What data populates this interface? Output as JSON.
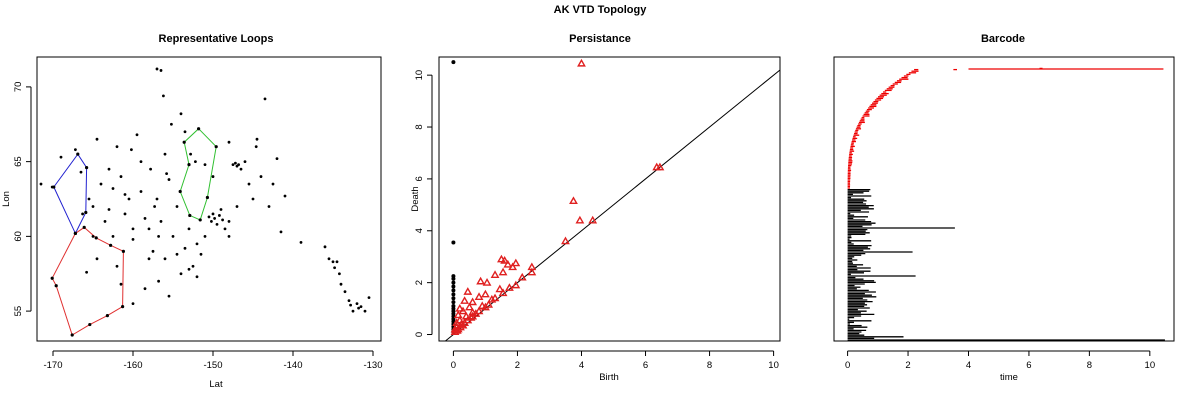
{
  "figure": {
    "title": "AK VTD Topology"
  },
  "chart_data": [
    {
      "type": "scatter",
      "title": "Representative Loops",
      "xlabel": "Lat",
      "ylabel": "Lon",
      "xlim": [
        -172,
        -129
      ],
      "ylim": [
        53,
        72
      ],
      "xticks": [
        -170,
        -160,
        -150,
        -140,
        -130
      ],
      "yticks": [
        55,
        60,
        65,
        70
      ],
      "xtick_labels": [
        "-170",
        "-160",
        "-150",
        "-140",
        "-130"
      ],
      "ytick_labels": [
        "55",
        "60",
        "65",
        "70"
      ],
      "colors": {
        "points": "#000000",
        "loop_blue": "#2020d0",
        "loop_red": "#e03030",
        "loop_green": "#30c030"
      },
      "loops": [
        {
          "color": "#2020d0",
          "points": [
            [
              -166.9,
              65.5
            ],
            [
              -165.8,
              64.6
            ],
            [
              -165.9,
              61.6
            ],
            [
              -167.2,
              60.2
            ],
            [
              -169.9,
              63.3
            ]
          ]
        },
        {
          "color": "#e03030",
          "points": [
            [
              -166.1,
              60.6
            ],
            [
              -164.6,
              59.9
            ],
            [
              -162.8,
              59.4
            ],
            [
              -161.2,
              59.0
            ],
            [
              -161.3,
              55.3
            ],
            [
              -163.2,
              54.7
            ],
            [
              -165.4,
              54.1
            ],
            [
              -167.6,
              53.4
            ],
            [
              -169.6,
              56.7
            ],
            [
              -170.1,
              57.2
            ],
            [
              -167.2,
              60.2
            ]
          ]
        },
        {
          "color": "#30c030",
          "points": [
            [
              -151.8,
              67.2
            ],
            [
              -149.6,
              66.0
            ],
            [
              -150.7,
              62.6
            ],
            [
              -151.6,
              61.1
            ],
            [
              -152.9,
              61.4
            ],
            [
              -154.1,
              63.0
            ],
            [
              -153.0,
              64.8
            ],
            [
              -153.6,
              66.3
            ]
          ]
        }
      ],
      "points": [
        [
          -171.5,
          63.5
        ],
        [
          -170.1,
          63.3
        ],
        [
          -169.0,
          65.3
        ],
        [
          -167.2,
          65.8
        ],
        [
          -166.5,
          64.3
        ],
        [
          -166.3,
          61.5
        ],
        [
          -165.5,
          62.5
        ],
        [
          -165.0,
          62.0
        ],
        [
          -165.0,
          60.0
        ],
        [
          -164.5,
          66.5
        ],
        [
          -164.0,
          63.5
        ],
        [
          -163.5,
          61.0
        ],
        [
          -163.0,
          61.8
        ],
        [
          -162.5,
          60.0
        ],
        [
          -162.0,
          66.0
        ],
        [
          -161.5,
          64.0
        ],
        [
          -161.0,
          61.5
        ],
        [
          -160.5,
          62.5
        ],
        [
          -160.0,
          60.5
        ],
        [
          -160.0,
          59.8
        ],
        [
          -159.5,
          66.8
        ],
        [
          -159.0,
          63.0
        ],
        [
          -158.5,
          61.2
        ],
        [
          -158.0,
          60.5
        ],
        [
          -157.8,
          64.5
        ],
        [
          -157.5,
          59.0
        ],
        [
          -157.0,
          62.5
        ],
        [
          -156.5,
          61.0
        ],
        [
          -156.0,
          65.5
        ],
        [
          -156.0,
          58.5
        ],
        [
          -155.5,
          63.8
        ],
        [
          -155.0,
          60.0
        ],
        [
          -154.5,
          62.0
        ],
        [
          -154.5,
          58.8
        ],
        [
          -154.0,
          57.5
        ],
        [
          -153.5,
          59.2
        ],
        [
          -153.0,
          60.5
        ],
        [
          -152.5,
          58.0
        ],
        [
          -152.0,
          57.3
        ],
        [
          -157.0,
          71.2
        ],
        [
          -156.5,
          71.1
        ],
        [
          -155.2,
          67.5
        ],
        [
          -154.0,
          68.2
        ],
        [
          -152.2,
          65.0
        ],
        [
          -151.0,
          64.8
        ],
        [
          -150.5,
          61.3
        ],
        [
          -150.2,
          61.0
        ],
        [
          -150.0,
          61.5
        ],
        [
          -149.8,
          61.2
        ],
        [
          -149.5,
          60.8
        ],
        [
          -149.2,
          61.4
        ],
        [
          -149.0,
          61.8
        ],
        [
          -148.8,
          61.1
        ],
        [
          -148.5,
          60.5
        ],
        [
          -148.0,
          61.0
        ],
        [
          -147.5,
          64.8
        ],
        [
          -147.2,
          64.9
        ],
        [
          -147.0,
          64.7
        ],
        [
          -146.8,
          64.8
        ],
        [
          -146.5,
          64.5
        ],
        [
          -146.0,
          65.0
        ],
        [
          -145.5,
          63.5
        ],
        [
          -145.0,
          62.5
        ],
        [
          -144.5,
          66.5
        ],
        [
          -144.0,
          64.0
        ],
        [
          -143.5,
          69.2
        ],
        [
          -143.0,
          62.0
        ],
        [
          -142.5,
          63.5
        ],
        [
          -142.0,
          65.2
        ],
        [
          -141.5,
          60.3
        ],
        [
          -141.0,
          62.7
        ],
        [
          -139.0,
          59.6
        ],
        [
          -136.0,
          59.3
        ],
        [
          -135.5,
          58.5
        ],
        [
          -135.0,
          58.3
        ],
        [
          -134.8,
          57.9
        ],
        [
          -134.5,
          58.3
        ],
        [
          -134.2,
          57.5
        ],
        [
          -134.0,
          56.8
        ],
        [
          -133.5,
          56.3
        ],
        [
          -133.0,
          55.7
        ],
        [
          -132.8,
          55.4
        ],
        [
          -132.5,
          55.0
        ],
        [
          -132.0,
          55.5
        ],
        [
          -131.8,
          55.2
        ],
        [
          -131.5,
          55.3
        ],
        [
          -131.0,
          55.0
        ],
        [
          -130.5,
          55.9
        ],
        [
          -158.5,
          56.5
        ],
        [
          -160.0,
          55.5
        ],
        [
          -152.8,
          65.5
        ],
        [
          -150.0,
          64.0
        ],
        [
          -147.0,
          62.0
        ],
        [
          -148.0,
          60.0
        ],
        [
          -151.0,
          60.0
        ],
        [
          -152.0,
          59.5
        ],
        [
          -158.0,
          58.5
        ],
        [
          -162.0,
          58.0
        ],
        [
          -161.5,
          56.8
        ],
        [
          -164.5,
          58.5
        ],
        [
          -165.8,
          57.6
        ],
        [
          -163.0,
          64.5
        ],
        [
          -161.0,
          62.8
        ],
        [
          -155.8,
          64.2
        ],
        [
          -153.5,
          67.0
        ],
        [
          -156.2,
          69.4
        ],
        [
          -148.0,
          66.3
        ],
        [
          -144.6,
          66.0
        ],
        [
          -159.0,
          65.0
        ],
        [
          -162.5,
          63.2
        ],
        [
          -160.2,
          65.8
        ],
        [
          -157.3,
          62.0
        ],
        [
          -156.8,
          60.0
        ],
        [
          -153.0,
          57.8
        ],
        [
          -151.5,
          58.8
        ],
        [
          -155.5,
          56.0
        ],
        [
          -156.8,
          57.0
        ]
      ]
    },
    {
      "type": "scatter",
      "title": "Persistance",
      "xlabel": "Birth",
      "ylabel": "Death",
      "xlim": [
        -0.45,
        10.2
      ],
      "ylim": [
        -0.25,
        10.7
      ],
      "xticks": [
        0,
        2,
        4,
        6,
        8,
        10
      ],
      "yticks": [
        0,
        2,
        4,
        6,
        8,
        10
      ],
      "xtick_labels": [
        "0",
        "2",
        "4",
        "6",
        "8",
        "10"
      ],
      "ytick_labels": [
        "0",
        "2",
        "4",
        "6",
        "8",
        "10"
      ],
      "series": [
        {
          "marker": "dot",
          "color": "#000000",
          "points": [
            [
              0,
              10.5
            ],
            [
              0,
              3.55
            ],
            [
              0,
              2.25
            ],
            [
              0,
              2.15
            ],
            [
              0,
              2.0
            ],
            [
              0,
              1.85
            ],
            [
              0,
              1.7
            ],
            [
              0,
              1.55
            ],
            [
              0,
              1.4
            ],
            [
              0,
              1.25
            ],
            [
              0,
              1.1
            ],
            [
              0,
              1.0
            ],
            [
              0,
              0.9
            ],
            [
              0,
              0.8
            ],
            [
              0,
              0.7
            ],
            [
              0,
              0.6
            ],
            [
              0,
              0.5
            ],
            [
              0,
              0.4
            ],
            [
              0,
              0.3
            ],
            [
              0,
              0.2
            ],
            [
              0,
              0.1
            ]
          ]
        },
        {
          "marker": "triangle",
          "color": "#e02020",
          "points": [
            [
              4.0,
              10.45
            ],
            [
              6.35,
              6.45
            ],
            [
              6.45,
              6.45
            ],
            [
              3.75,
              5.15
            ],
            [
              3.95,
              4.4
            ],
            [
              4.35,
              4.4
            ],
            [
              3.5,
              3.6
            ],
            [
              1.5,
              2.9
            ],
            [
              1.6,
              2.85
            ],
            [
              1.7,
              2.7
            ],
            [
              1.95,
              2.75
            ],
            [
              1.85,
              2.6
            ],
            [
              2.45,
              2.6
            ],
            [
              2.45,
              2.4
            ],
            [
              1.55,
              2.4
            ],
            [
              1.3,
              2.3
            ],
            [
              0.85,
              2.05
            ],
            [
              1.05,
              2.0
            ],
            [
              2.15,
              2.2
            ],
            [
              1.45,
              1.75
            ],
            [
              0.45,
              1.65
            ],
            [
              1.95,
              1.9
            ],
            [
              1.75,
              1.8
            ],
            [
              1.0,
              1.55
            ],
            [
              0.8,
              1.45
            ],
            [
              1.55,
              1.6
            ],
            [
              0.35,
              1.3
            ],
            [
              0.6,
              1.25
            ],
            [
              1.2,
              1.35
            ],
            [
              0.2,
              1.0
            ],
            [
              0.5,
              1.05
            ],
            [
              0.9,
              1.1
            ],
            [
              1.1,
              1.15
            ],
            [
              0.3,
              0.9
            ],
            [
              0.6,
              0.85
            ],
            [
              0.15,
              0.75
            ],
            [
              0.4,
              0.7
            ],
            [
              0.7,
              0.8
            ],
            [
              0.2,
              0.55
            ],
            [
              0.1,
              0.45
            ],
            [
              0.25,
              0.4
            ],
            [
              0.45,
              0.55
            ],
            [
              0.1,
              0.3
            ],
            [
              0.05,
              0.2
            ],
            [
              0.3,
              0.35
            ],
            [
              0.55,
              0.65
            ],
            [
              0.8,
              0.9
            ],
            [
              1.0,
              1.05
            ],
            [
              1.3,
              1.4
            ],
            [
              0.15,
              0.2
            ],
            [
              0.6,
              0.7
            ],
            [
              0.35,
              0.45
            ],
            [
              0.05,
              0.1
            ],
            [
              0.12,
              0.15
            ],
            [
              0.22,
              0.28
            ]
          ]
        }
      ]
    },
    {
      "type": "barcode",
      "title": "Barcode",
      "xlabel": "time",
      "xlim": [
        -0.45,
        10.8
      ],
      "xticks": [
        0,
        2,
        4,
        6,
        8,
        10
      ],
      "xtick_labels": [
        "0",
        "2",
        "4",
        "6",
        "8",
        "10"
      ],
      "colors": {
        "dim0": "#000000",
        "dim1": "#ee0000"
      },
      "dim0_bars": [
        {
          "start": 0,
          "end": 10.5
        },
        {
          "start": 0,
          "end": 3.55
        },
        {
          "start": 0,
          "end": 2.25
        },
        {
          "start": 0,
          "end": 2.15
        },
        {
          "start": 0,
          "end": 1.85
        }
      ],
      "dim1_bars": [
        {
          "start": 3.5,
          "end": 3.62
        },
        {
          "start": 4.0,
          "end": 10.45
        },
        {
          "start": 6.35,
          "end": 6.45
        }
      ]
    }
  ]
}
